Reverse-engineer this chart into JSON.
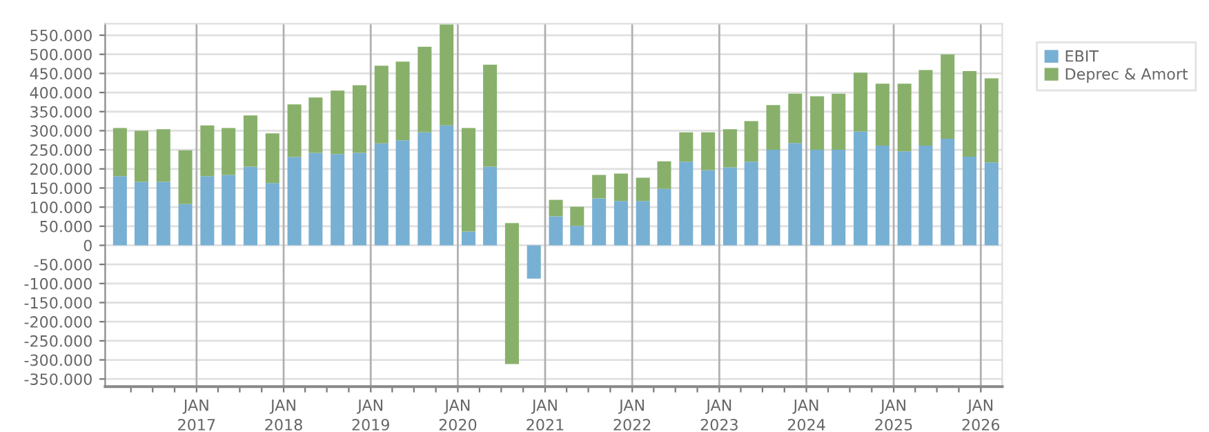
{
  "chart_data": {
    "type": "bar",
    "stacked": true,
    "x": [
      "2016-02-15",
      "2016-05-15",
      "2016-08-15",
      "2016-11-15",
      "2017-02-15",
      "2017-05-15",
      "2017-08-15",
      "2017-11-15",
      "2018-02-15",
      "2018-05-15",
      "2018-08-15",
      "2018-11-15",
      "2019-02-15",
      "2019-05-15",
      "2019-08-15",
      "2019-11-15",
      "2020-02-15",
      "2020-05-15",
      "2020-08-15",
      "2020-11-15",
      "2021-02-15",
      "2021-05-15",
      "2021-08-15",
      "2021-11-15",
      "2022-02-15",
      "2022-05-15",
      "2022-08-15",
      "2022-11-15",
      "2023-02-15",
      "2023-05-15",
      "2023-08-15",
      "2023-11-15",
      "2024-02-15",
      "2024-05-15",
      "2024-08-15",
      "2024-11-15",
      "2025-02-15",
      "2025-05-15",
      "2025-08-15",
      "2025-11-15",
      "2026-02-15"
    ],
    "series": [
      {
        "name": "EBIT",
        "color": "#77b0d3",
        "values": [
          181000,
          166000,
          166000,
          108000,
          181000,
          184000,
          206000,
          163000,
          231000,
          242000,
          239000,
          242000,
          267000,
          275000,
          296000,
          314000,
          36000,
          206000,
          null,
          -87000,
          76000,
          51000,
          123000,
          116000,
          116000,
          148000,
          219000,
          197000,
          204000,
          219000,
          250000,
          268000,
          250000,
          250000,
          298000,
          261000,
          246000,
          261000,
          279000,
          232000,
          217000
        ]
      },
      {
        "name": "Deprec & Amort",
        "color": "#88b06a",
        "values": [
          126000,
          134000,
          138000,
          141000,
          133000,
          123000,
          134000,
          130000,
          138000,
          145000,
          166000,
          177000,
          203000,
          206000,
          224000,
          264000,
          271000,
          267000,
          369000,
          null,
          43000,
          50000,
          61000,
          72000,
          61000,
          72000,
          77000,
          99000,
          100000,
          106000,
          117000,
          129000,
          140000,
          147000,
          154000,
          162000,
          177000,
          198000,
          221000,
          224000,
          220000
        ],
        "base": [
          null,
          null,
          null,
          null,
          null,
          null,
          null,
          null,
          null,
          null,
          null,
          null,
          null,
          null,
          null,
          null,
          null,
          null,
          -311000,
          null,
          null,
          null,
          null,
          null,
          null,
          null,
          null,
          null,
          null,
          null,
          null,
          null,
          null,
          null,
          null,
          null,
          null,
          null,
          null,
          null,
          null
        ]
      }
    ],
    "xlim": [
      "2015-12-15",
      "2026-04-01"
    ],
    "xticks": [
      {
        "value": "2016-04-01",
        "label": null
      },
      {
        "value": "2016-07-01",
        "label": null
      },
      {
        "value": "2016-10-01",
        "label": null
      },
      {
        "value": "2017-01-01",
        "label": "JAN\n2017"
      },
      {
        "value": "2017-04-01",
        "label": null
      },
      {
        "value": "2017-07-01",
        "label": null
      },
      {
        "value": "2017-10-01",
        "label": null
      },
      {
        "value": "2018-01-01",
        "label": "JAN\n2018"
      },
      {
        "value": "2018-04-01",
        "label": null
      },
      {
        "value": "2018-07-01",
        "label": null
      },
      {
        "value": "2018-10-01",
        "label": null
      },
      {
        "value": "2019-01-01",
        "label": "JAN\n2019"
      },
      {
        "value": "2019-04-01",
        "label": null
      },
      {
        "value": "2019-07-01",
        "label": null
      },
      {
        "value": "2019-10-01",
        "label": null
      },
      {
        "value": "2020-01-01",
        "label": "JAN\n2020"
      },
      {
        "value": "2020-04-01",
        "label": null
      },
      {
        "value": "2020-07-01",
        "label": null
      },
      {
        "value": "2020-10-01",
        "label": null
      },
      {
        "value": "2021-01-01",
        "label": "JAN\n2021"
      },
      {
        "value": "2021-04-01",
        "label": null
      },
      {
        "value": "2021-07-01",
        "label": null
      },
      {
        "value": "2021-10-01",
        "label": null
      },
      {
        "value": "2022-01-01",
        "label": "JAN\n2022"
      },
      {
        "value": "2022-04-01",
        "label": null
      },
      {
        "value": "2022-07-01",
        "label": null
      },
      {
        "value": "2022-10-01",
        "label": null
      },
      {
        "value": "2023-01-01",
        "label": "JAN\n2023"
      },
      {
        "value": "2023-04-01",
        "label": null
      },
      {
        "value": "2023-07-01",
        "label": null
      },
      {
        "value": "2023-10-01",
        "label": null
      },
      {
        "value": "2024-01-01",
        "label": "JAN\n2024"
      },
      {
        "value": "2024-04-01",
        "label": null
      },
      {
        "value": "2024-07-01",
        "label": null
      },
      {
        "value": "2024-10-01",
        "label": null
      },
      {
        "value": "2025-01-01",
        "label": "JAN\n2025"
      },
      {
        "value": "2025-04-01",
        "label": null
      },
      {
        "value": "2025-07-01",
        "label": null
      },
      {
        "value": "2025-10-01",
        "label": null
      },
      {
        "value": "2026-01-01",
        "label": "JAN\n2026"
      }
    ],
    "ylim": [
      -370000,
      580000
    ],
    "yticks": [
      {
        "value": -350000,
        "label": "-350.000"
      },
      {
        "value": -300000,
        "label": "-300.000"
      },
      {
        "value": -250000,
        "label": "-250.000"
      },
      {
        "value": -200000,
        "label": "-200.000"
      },
      {
        "value": -150000,
        "label": "-150.000"
      },
      {
        "value": -100000,
        "label": "-100.000"
      },
      {
        "value": -50000,
        "label": "-50.000"
      },
      0,
      {
        "value": 50000,
        "label": "50.000"
      },
      {
        "value": 100000,
        "label": "100.000"
      },
      {
        "value": 150000,
        "label": "150.000"
      },
      {
        "value": 200000,
        "label": "200.000"
      },
      {
        "value": 250000,
        "label": "250.000"
      },
      {
        "value": 300000,
        "label": "300.000"
      },
      {
        "value": 350000,
        "label": "350.000"
      },
      {
        "value": 400000,
        "label": "400.000"
      },
      {
        "value": 450000,
        "label": "450.000"
      },
      {
        "value": 500000,
        "label": "500.000"
      },
      {
        "value": 550000,
        "label": "550.000"
      }
    ],
    "grid": true,
    "legend": "top right"
  }
}
